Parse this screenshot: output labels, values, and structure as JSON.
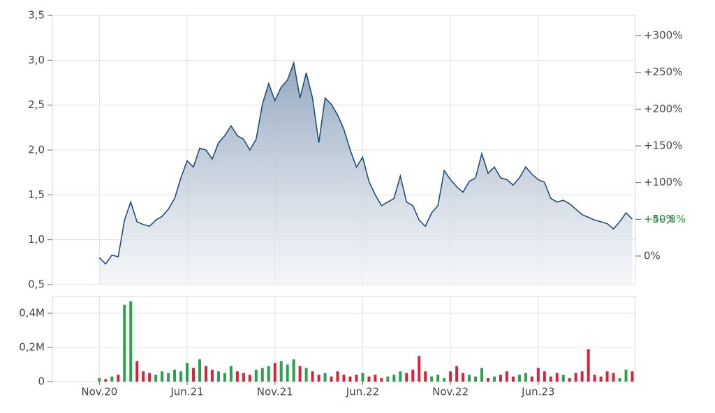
{
  "chart_data": [
    {
      "type": "line",
      "ylim": [
        0.5,
        3.5
      ],
      "yticks": [
        {
          "value": 0.5,
          "label": "0,5"
        },
        {
          "value": 1.0,
          "label": "1,0"
        },
        {
          "value": 1.5,
          "label": "1,5"
        },
        {
          "value": 2.0,
          "label": "2,0"
        },
        {
          "value": 2.5,
          "label": "2,5"
        },
        {
          "value": 3.0,
          "label": "3,0"
        },
        {
          "value": 3.5,
          "label": "3,5"
        }
      ],
      "y2lim": [
        -38.92,
        327.56
      ],
      "y2ticks": [
        {
          "value": 0,
          "label": "0%"
        },
        {
          "value": 50,
          "label": "+50%"
        },
        {
          "value": 100,
          "label": "+100%"
        },
        {
          "value": 150,
          "label": "+150%"
        },
        {
          "value": 200,
          "label": "+200%"
        },
        {
          "value": 250,
          "label": "+250%"
        },
        {
          "value": 300,
          "label": "+300%"
        }
      ],
      "last_change": {
        "value": 49.8,
        "label": "+49,8%",
        "color": "#2e9e4f"
      },
      "grid": true,
      "series": [
        {
          "color": "#1f4e79",
          "values": [
            0.8,
            0.73,
            0.83,
            0.81,
            1.22,
            1.42,
            1.2,
            1.17,
            1.15,
            1.22,
            1.26,
            1.34,
            1.46,
            1.69,
            1.88,
            1.81,
            2.02,
            2.0,
            1.9,
            2.08,
            2.16,
            2.27,
            2.16,
            2.12,
            2.0,
            2.12,
            2.51,
            2.74,
            2.55,
            2.7,
            2.78,
            2.97,
            2.58,
            2.86,
            2.58,
            2.08,
            2.58,
            2.51,
            2.39,
            2.23,
            2.0,
            1.81,
            1.92,
            1.65,
            1.5,
            1.38,
            1.42,
            1.46,
            1.71,
            1.42,
            1.38,
            1.22,
            1.15,
            1.3,
            1.38,
            1.77,
            1.67,
            1.59,
            1.53,
            1.65,
            1.69,
            1.96,
            1.74,
            1.81,
            1.69,
            1.67,
            1.61,
            1.69,
            1.81,
            1.73,
            1.67,
            1.64,
            1.46,
            1.42,
            1.44,
            1.4,
            1.34,
            1.28,
            1.25,
            1.22,
            1.2,
            1.18,
            1.12,
            1.2,
            1.3,
            1.23
          ]
        }
      ]
    },
    {
      "type": "bar",
      "ylim": [
        0,
        498000
      ],
      "yticks": [
        0,
        {
          "value": 200000,
          "label": "0,2M"
        },
        {
          "value": 400000,
          "label": "0,4M"
        }
      ],
      "xlim": [
        -7.5,
        85.5
      ],
      "xticks": [
        {
          "value": 0,
          "label": "Nov.20"
        },
        {
          "value": 14,
          "label": "Jun.21"
        },
        {
          "value": 28,
          "label": "Nov.21"
        },
        {
          "value": 42,
          "label": "Jun.22"
        },
        {
          "value": 56,
          "label": "Nov.22"
        },
        {
          "value": 70,
          "label": "Jun.23"
        }
      ],
      "up_color": "#2e9e4f",
      "down_color": "#d9233a",
      "values": [
        20000,
        15000,
        30000,
        40000,
        450000,
        470000,
        120000,
        60000,
        50000,
        40000,
        60000,
        50000,
        70000,
        60000,
        110000,
        80000,
        130000,
        90000,
        70000,
        60000,
        50000,
        90000,
        60000,
        50000,
        40000,
        70000,
        80000,
        90000,
        110000,
        120000,
        100000,
        130000,
        90000,
        80000,
        60000,
        40000,
        50000,
        30000,
        60000,
        40000,
        30000,
        40000,
        50000,
        30000,
        40000,
        20000,
        30000,
        40000,
        60000,
        50000,
        70000,
        150000,
        60000,
        30000,
        40000,
        20000,
        60000,
        90000,
        50000,
        40000,
        30000,
        80000,
        20000,
        30000,
        40000,
        60000,
        30000,
        40000,
        50000,
        30000,
        80000,
        60000,
        30000,
        50000,
        40000,
        20000,
        50000,
        60000,
        190000,
        40000,
        30000,
        60000,
        50000,
        20000,
        70000,
        60000
      ]
    }
  ]
}
